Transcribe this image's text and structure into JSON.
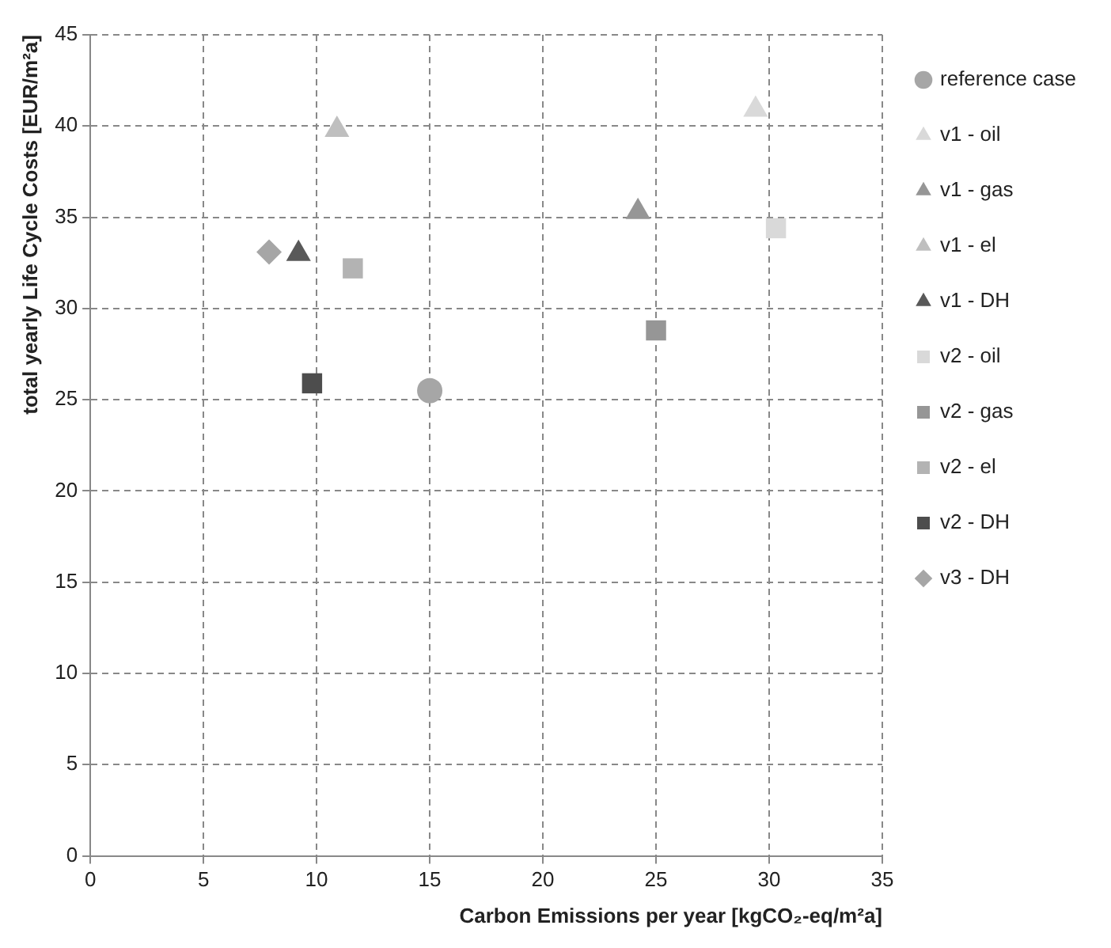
{
  "chart_data": {
    "type": "scatter",
    "xlabel": "Carbon Emissions per year [kgCO₂-eq/m²a]",
    "ylabel": "total yearly Life Cycle Costs [EUR/m²a]",
    "xlim": [
      0,
      35
    ],
    "ylim": [
      0,
      45
    ],
    "xticks": [
      0,
      5,
      10,
      15,
      20,
      25,
      30,
      35
    ],
    "yticks": [
      0,
      5,
      10,
      15,
      20,
      25,
      30,
      35,
      40,
      45
    ],
    "grid": true,
    "legend": "right",
    "series": [
      {
        "name": "reference case",
        "color": "#a6a6a6",
        "marker": "circle",
        "x": [
          15.0
        ],
        "values": [
          25.5
        ]
      },
      {
        "name": "v1 - oil",
        "color": "#d9d9d9",
        "marker": "triangle",
        "x": [
          29.4
        ],
        "values": [
          40.9
        ]
      },
      {
        "name": "v1 - gas",
        "color": "#969696",
        "marker": "triangle",
        "x": [
          24.2
        ],
        "values": [
          35.3
        ]
      },
      {
        "name": "v1 - el",
        "color": "#bfbfbf",
        "marker": "triangle",
        "x": [
          10.9
        ],
        "values": [
          39.8
        ]
      },
      {
        "name": "v1 - DH",
        "color": "#595959",
        "marker": "triangle",
        "x": [
          9.2
        ],
        "values": [
          33.0
        ]
      },
      {
        "name": "v2 - oil",
        "color": "#d9d9d9",
        "marker": "square",
        "x": [
          30.3
        ],
        "values": [
          34.4
        ]
      },
      {
        "name": "v2 - gas",
        "color": "#969696",
        "marker": "square",
        "x": [
          25.0
        ],
        "values": [
          28.8
        ]
      },
      {
        "name": "v2 - el",
        "color": "#b3b3b3",
        "marker": "square",
        "x": [
          11.6
        ],
        "values": [
          32.2
        ]
      },
      {
        "name": "v2 - DH",
        "color": "#4d4d4d",
        "marker": "square",
        "x": [
          9.8
        ],
        "values": [
          25.9
        ]
      },
      {
        "name": "v3 - DH",
        "color": "#a6a6a6",
        "marker": "diamond",
        "x": [
          7.9
        ],
        "values": [
          33.1
        ]
      }
    ]
  }
}
